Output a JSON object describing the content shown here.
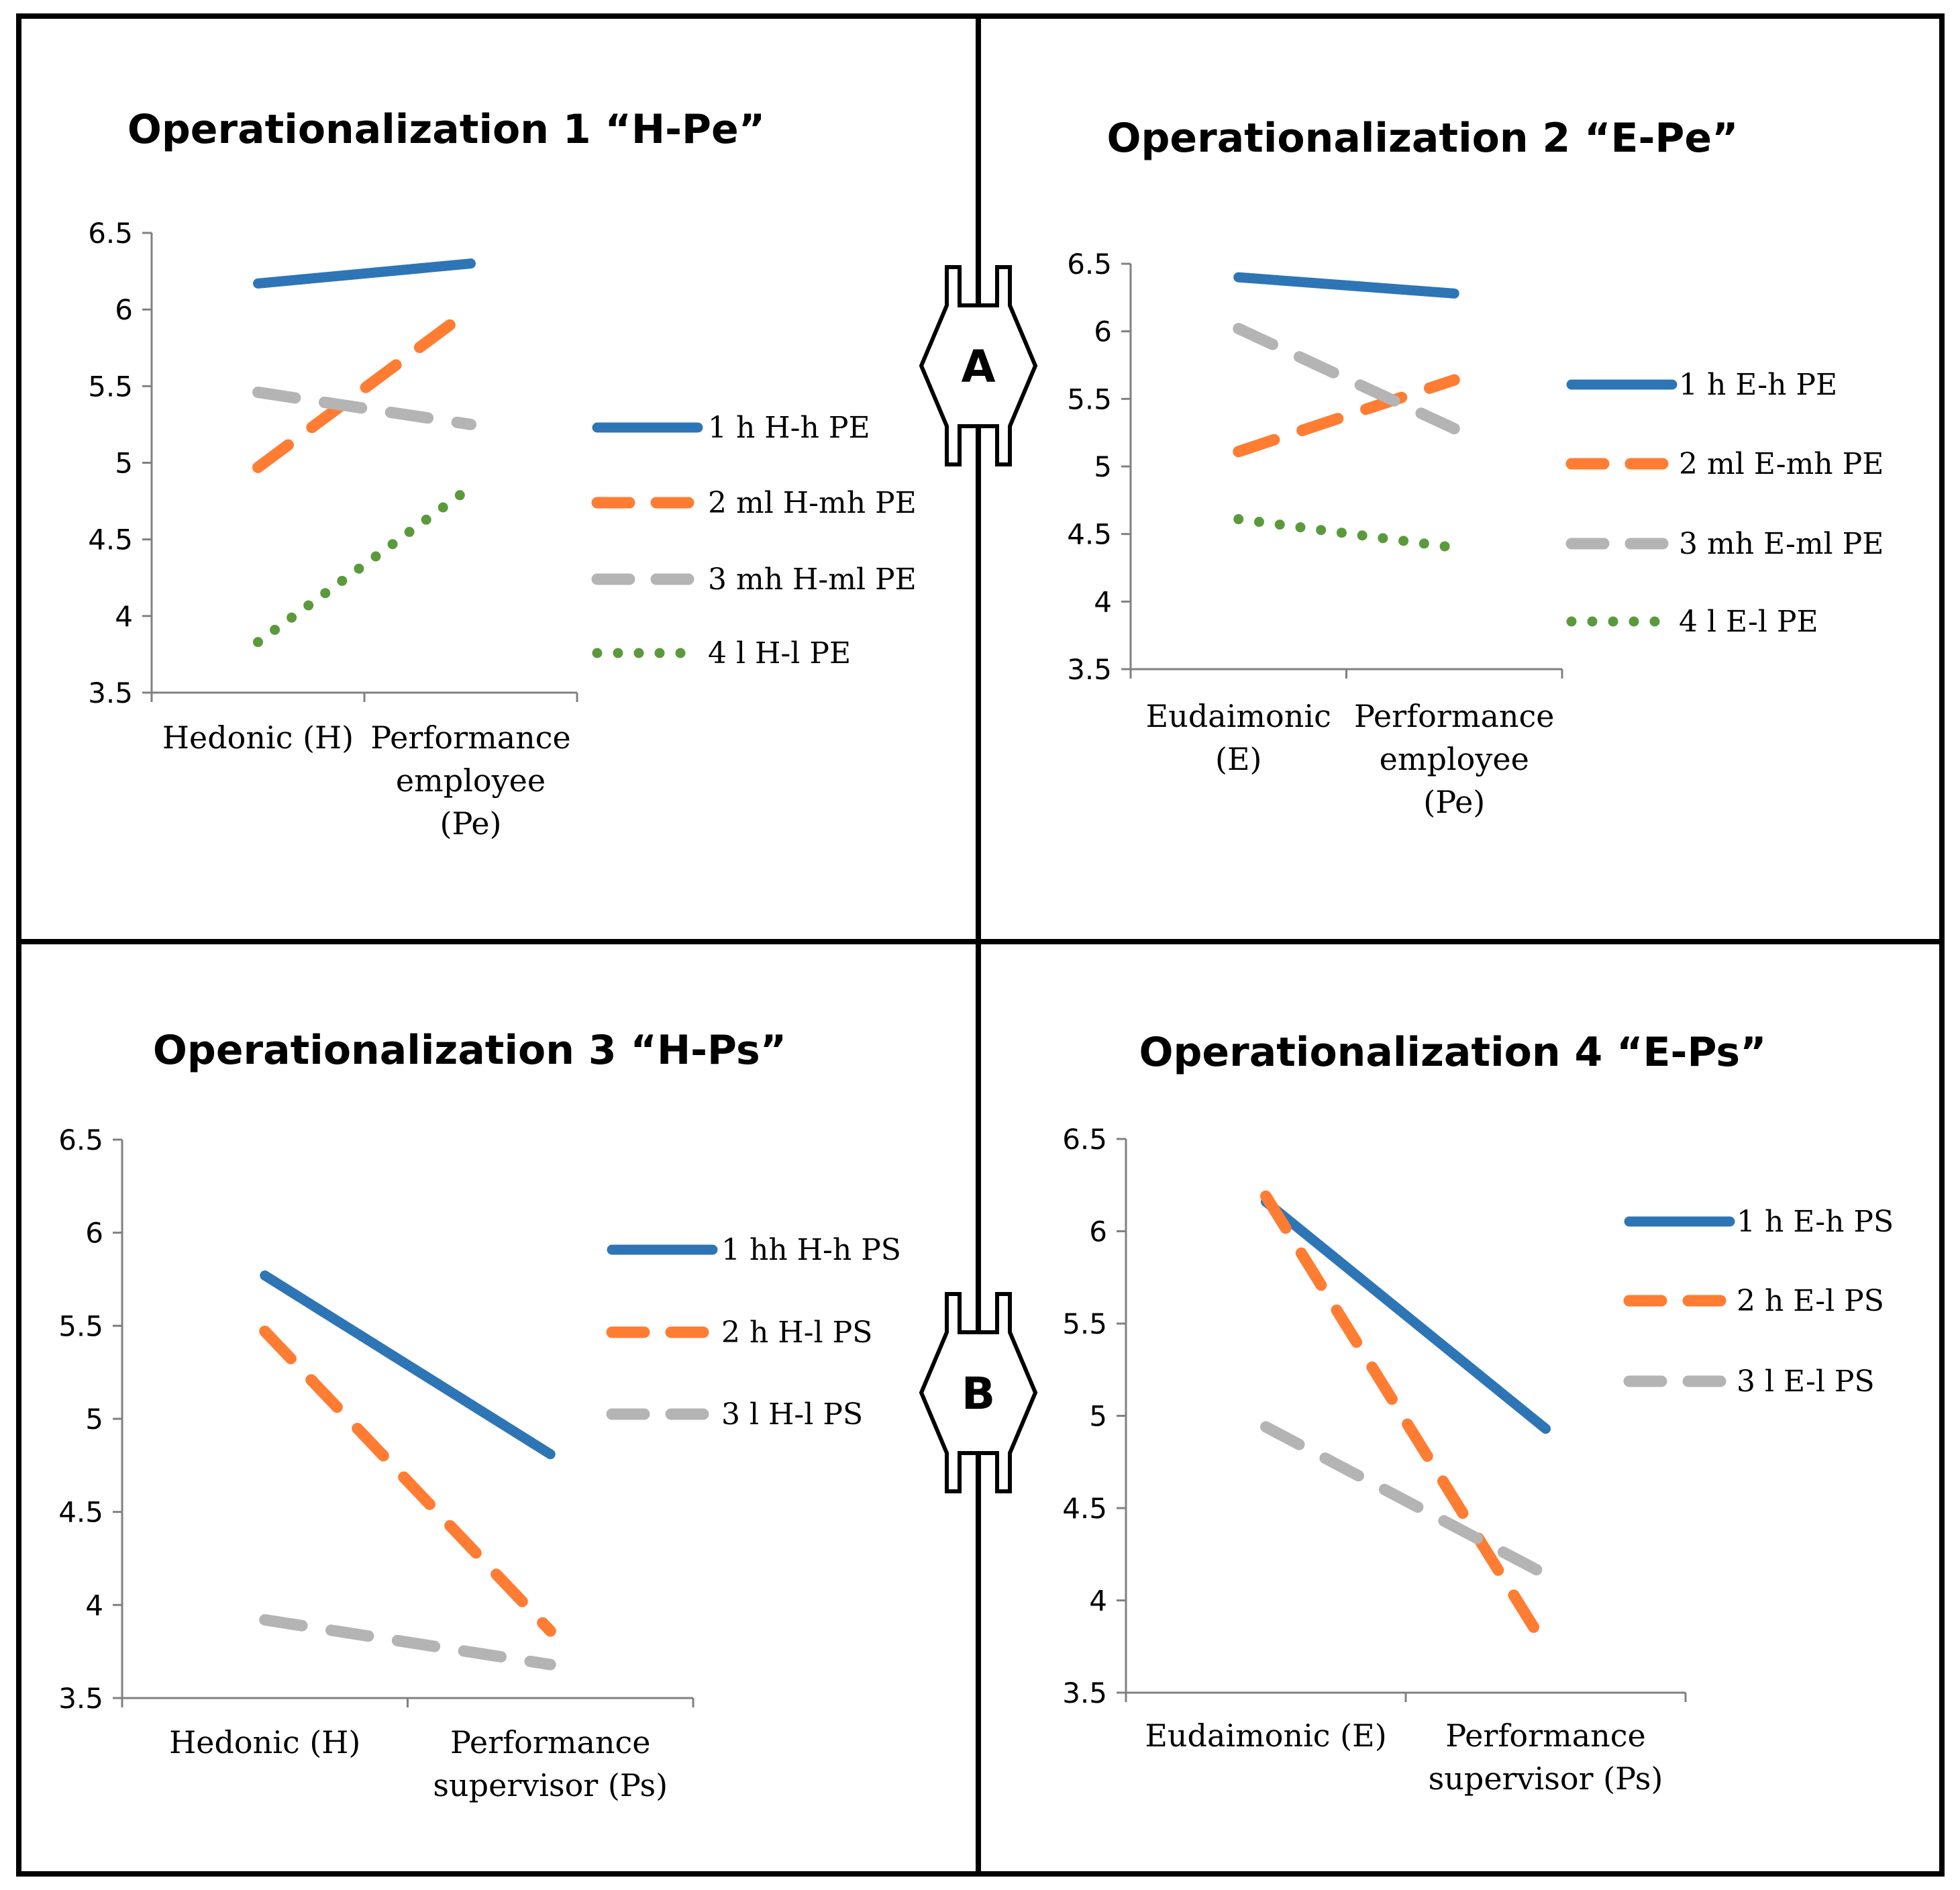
{
  "colors": {
    "blue": "#2E75B6",
    "orange": "#FF7C33",
    "gray": "#B4B4B4",
    "green": "#5B9A3C",
    "axis": "#808080",
    "border": "#000000"
  },
  "badges": [
    {
      "label": "A"
    },
    {
      "label": "B"
    }
  ],
  "chart_data": [
    {
      "type": "line",
      "title": "Operationalization 1 “H-Pe”",
      "categories": [
        "Hedonic (H)",
        "Performance employee (Pe)"
      ],
      "category_lines": [
        [
          "Hedonic (H)"
        ],
        [
          "Performance",
          "employee",
          "(Pe)"
        ]
      ],
      "ylim": [
        3.5,
        6.5
      ],
      "yticks": [
        "3.5",
        "4",
        "4.5",
        "5",
        "5.5",
        "6",
        "6.5"
      ],
      "series": [
        {
          "name": "1 h H-h PE",
          "style": "solid",
          "color": "#2E75B6",
          "values": [
            6.17,
            6.3
          ]
        },
        {
          "name": "2 ml H-mh PE",
          "style": "dash",
          "color": "#FF7C33",
          "values": [
            4.97,
            6.0
          ]
        },
        {
          "name": "3 mh H-ml PE",
          "style": "dash",
          "color": "#B4B4B4",
          "values": [
            5.46,
            5.25
          ]
        },
        {
          "name": "4 l H-l PE",
          "style": "dot",
          "color": "#5B9A3C",
          "values": [
            3.83,
            4.84
          ]
        }
      ]
    },
    {
      "type": "line",
      "title": "Operationalization 2 “E-Pe”",
      "categories": [
        "Eudaimonic (E)",
        "Performance employee (Pe)"
      ],
      "category_lines": [
        [
          "Eudaimonic",
          "(E)"
        ],
        [
          "Performance",
          "employee",
          "(Pe)"
        ]
      ],
      "ylim": [
        3.5,
        6.5
      ],
      "yticks": [
        "3.5",
        "4",
        "4.5",
        "5",
        "5.5",
        "6",
        "6.5"
      ],
      "series": [
        {
          "name": "1 h E-h PE",
          "style": "solid",
          "color": "#2E75B6",
          "values": [
            6.4,
            6.28
          ]
        },
        {
          "name": "2 ml E-mh PE",
          "style": "dash",
          "color": "#FF7C33",
          "values": [
            5.11,
            5.64
          ]
        },
        {
          "name": "3 mh E-ml PE",
          "style": "dash",
          "color": "#B4B4B4",
          "values": [
            6.02,
            5.28
          ]
        },
        {
          "name": "4 l E-l PE",
          "style": "dot",
          "color": "#5B9A3C",
          "values": [
            4.61,
            4.4
          ]
        }
      ]
    },
    {
      "type": "line",
      "title": "Operationalization 3 “H-Ps”",
      "categories": [
        "Hedonic (H)",
        "Performance supervisor (Ps)"
      ],
      "category_lines": [
        [
          "Hedonic (H)"
        ],
        [
          "Performance",
          "supervisor (Ps)"
        ]
      ],
      "ylim": [
        3.5,
        6.5
      ],
      "yticks": [
        "3.5",
        "4",
        "4.5",
        "5",
        "5.5",
        "6",
        "6.5"
      ],
      "series": [
        {
          "name": "1 hh H-h PS",
          "style": "solid",
          "color": "#2E75B6",
          "values": [
            5.77,
            4.81
          ]
        },
        {
          "name": "2 h H-l PS",
          "style": "dash",
          "color": "#FF7C33",
          "values": [
            5.47,
            3.86
          ]
        },
        {
          "name": "3 l H-l PS",
          "style": "dash",
          "color": "#B4B4B4",
          "values": [
            3.92,
            3.68
          ]
        }
      ]
    },
    {
      "type": "line",
      "title": "Operationalization 4 “E-Ps”",
      "categories": [
        "Eudaimonic (E)",
        "Performance supervisor (Ps)"
      ],
      "category_lines": [
        [
          "Eudaimonic (E)"
        ],
        [
          "Performance",
          "supervisor (Ps)"
        ]
      ],
      "ylim": [
        3.5,
        6.5
      ],
      "yticks": [
        "3.5",
        "4",
        "4.5",
        "5",
        "5.5",
        "6",
        "6.5"
      ],
      "series": [
        {
          "name": "1 h E-h PS",
          "style": "solid",
          "color": "#2E75B6",
          "values": [
            6.16,
            4.93
          ]
        },
        {
          "name": "2 h E-l PS",
          "style": "dash",
          "color": "#FF7C33",
          "values": [
            6.19,
            3.75
          ]
        },
        {
          "name": "3 l E-l PS",
          "style": "dash",
          "color": "#B4B4B4",
          "values": [
            4.94,
            4.14
          ]
        }
      ]
    }
  ]
}
